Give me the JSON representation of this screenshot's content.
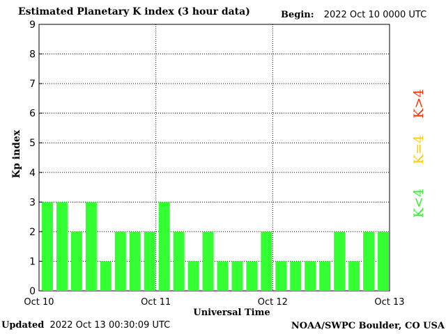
{
  "header": {
    "title": "Estimated Planetary K index (3 hour data)",
    "begin_label": "Begin:",
    "begin_value": "2022 Oct 10 0000 UTC"
  },
  "footer": {
    "updated_label": "Updated",
    "updated_value": "2022 Oct 13 00:30:09 UTC",
    "credit": "NOAA/SWPC Boulder, CO USA"
  },
  "legend": [
    {
      "label": "K>4",
      "color": "#ff3300"
    },
    {
      "label": "K=4",
      "color": "#ffcc00"
    },
    {
      "label": "K<4",
      "color": "#33ee33"
    }
  ],
  "chart_data": {
    "type": "bar",
    "title": "Estimated Planetary K index (3 hour data)",
    "xlabel": "Universal Time",
    "ylabel": "Kp index",
    "ylim": [
      0,
      9
    ],
    "yticks": [
      "0",
      "1",
      "2",
      "3",
      "4",
      "5",
      "6",
      "7",
      "8",
      "9"
    ],
    "xticks": [
      "Oct 10",
      "Oct 11",
      "Oct 12",
      "Oct 13"
    ],
    "grid": true,
    "bar_color": "#33ff33",
    "values": [
      3,
      3,
      2,
      3,
      1,
      2,
      2,
      2,
      3,
      2,
      1,
      2,
      1,
      1,
      1,
      2,
      1,
      1,
      1,
      1,
      2,
      1,
      2,
      2
    ]
  }
}
